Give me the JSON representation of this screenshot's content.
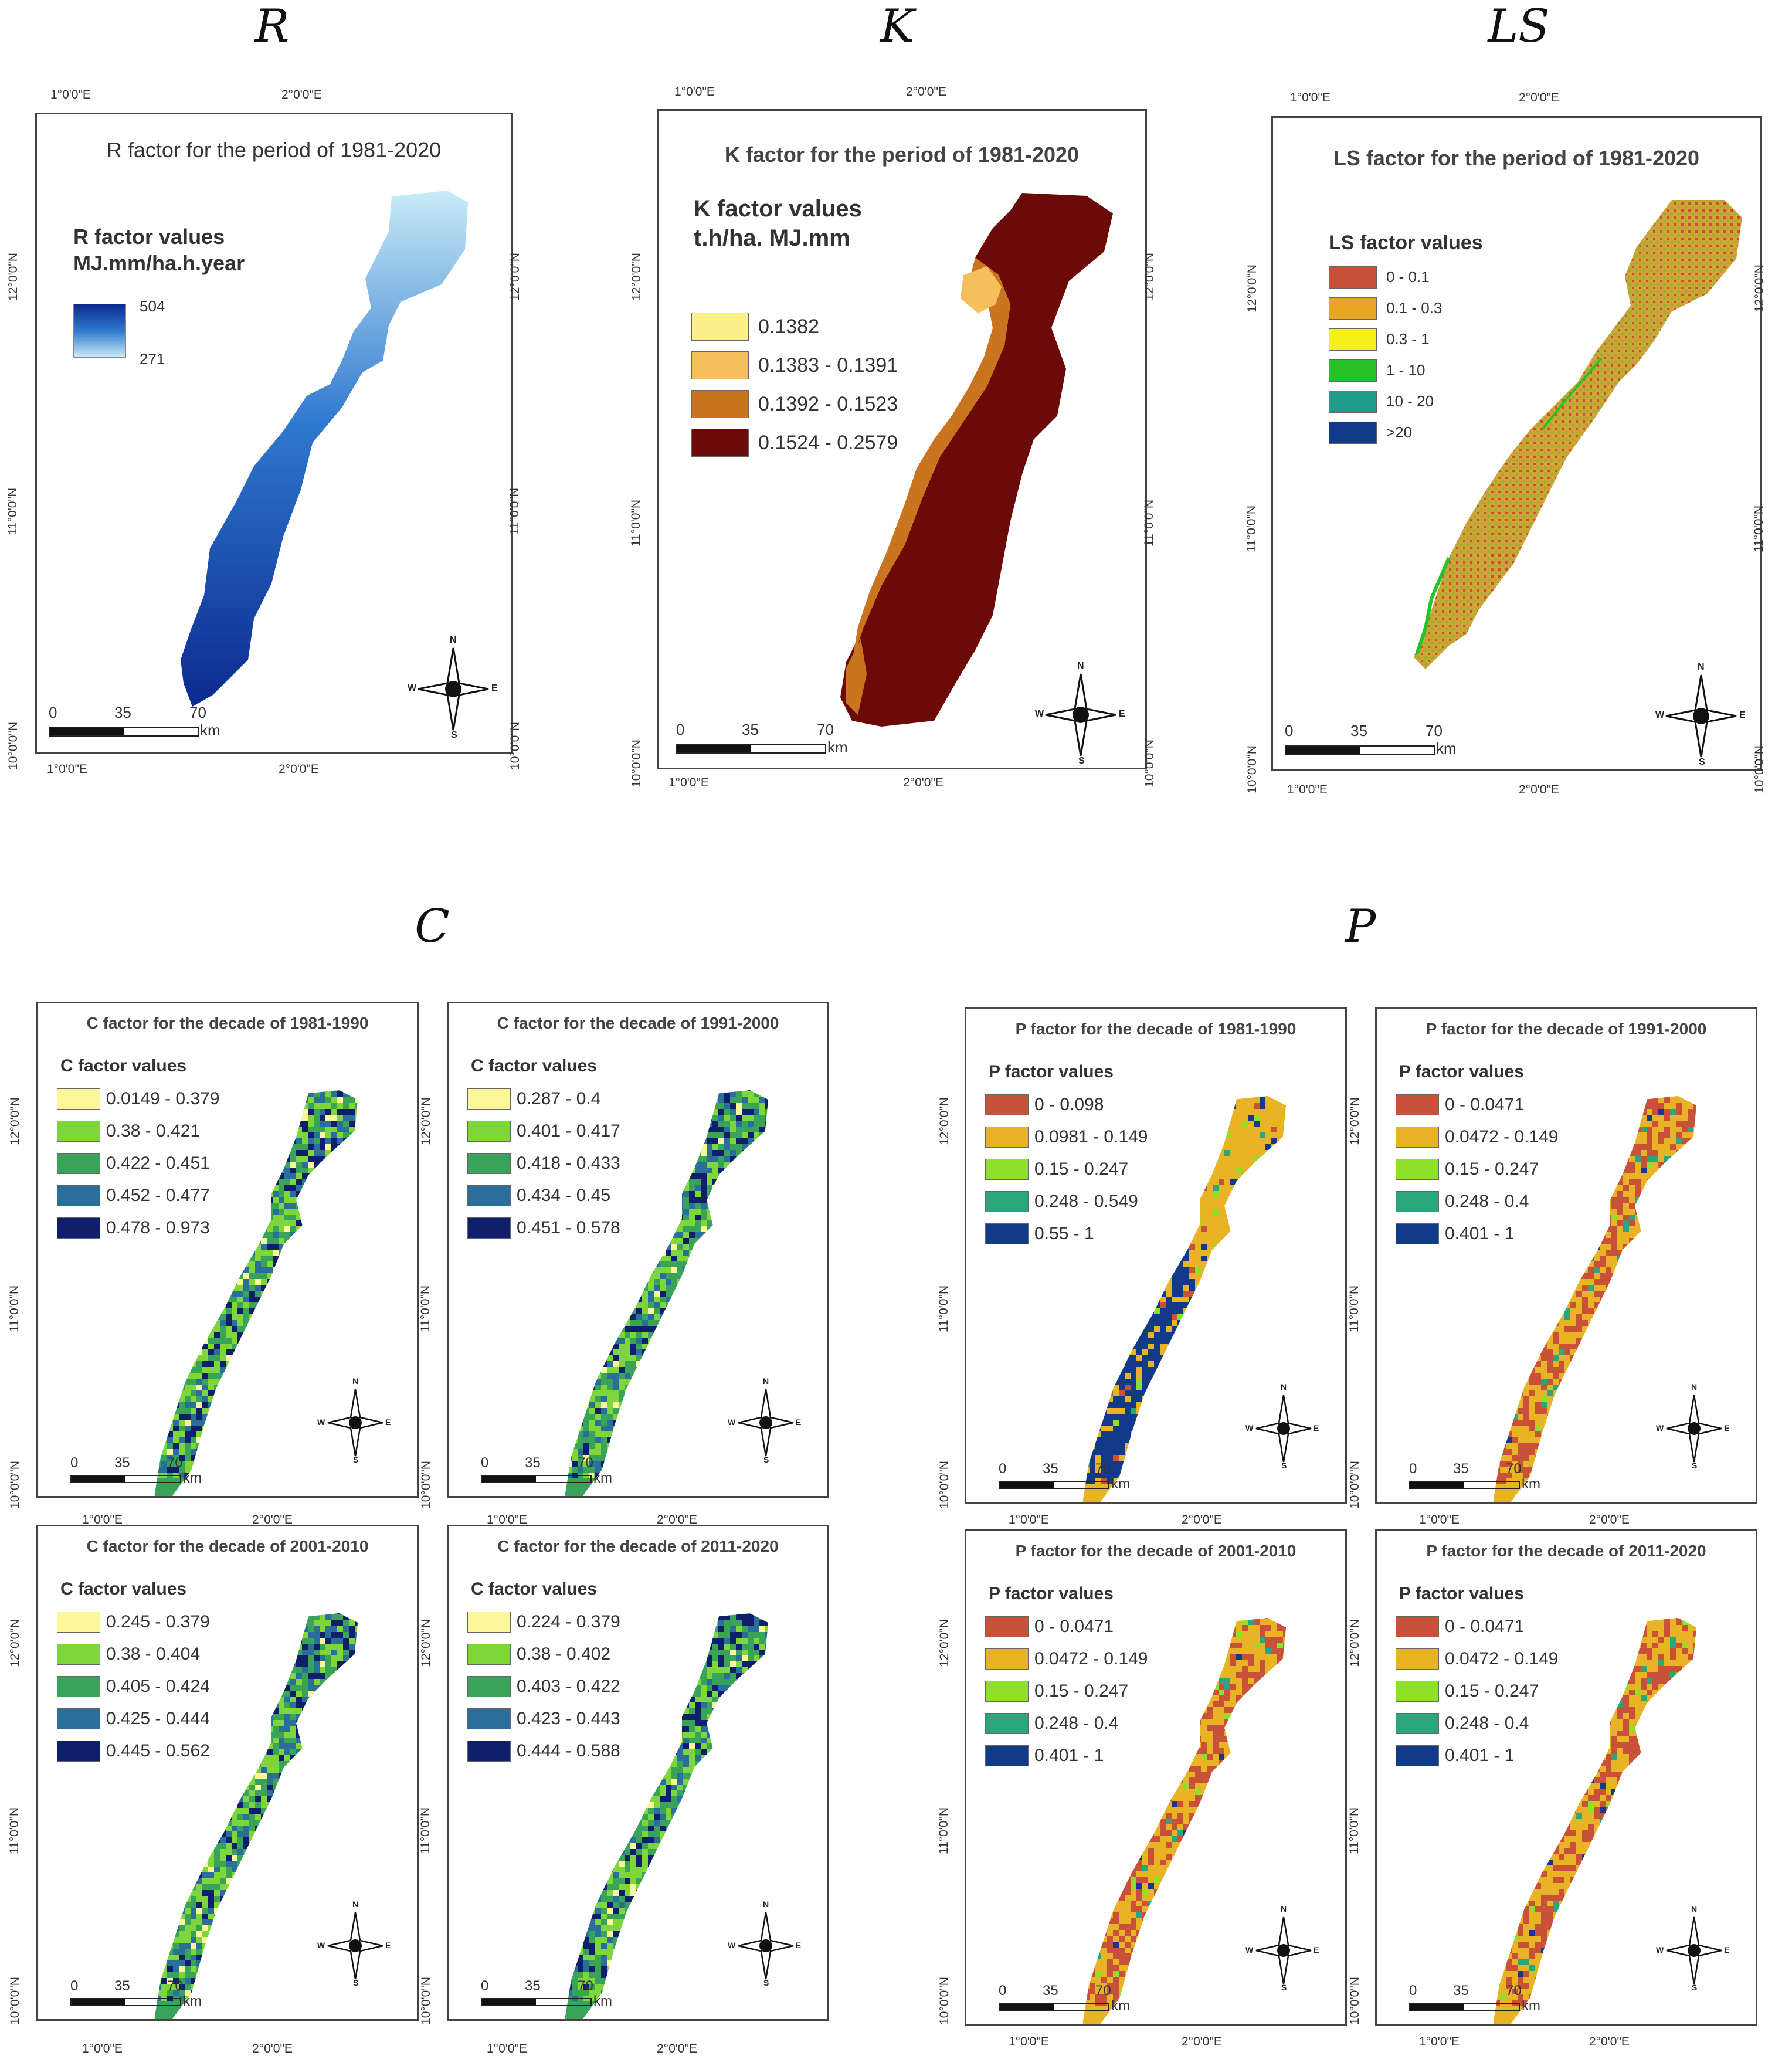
{
  "sections": {
    "R": "R",
    "K": "K",
    "LS": "LS",
    "C": "C",
    "P": "P"
  },
  "coords": {
    "lon1": "1°0'0\"E",
    "lon2": "2°0'0\"E",
    "lat12": "12°0'0\"N",
    "lat11": "11°0'0\"N",
    "lat10": "10°0'0\"N"
  },
  "scalebar": {
    "n0": "0",
    "n1": "35",
    "n2": "70",
    "unit": "km"
  },
  "compass": {
    "n": "N",
    "s": "S",
    "e": "E",
    "w": "W"
  },
  "r_map": {
    "title": "R factor for the period of 1981-2020",
    "legend_title_1": "R factor values",
    "legend_title_2": "MJ.mm/ha.h.year",
    "max": "504",
    "min": "271",
    "colors": {
      "high": "#0b2a8f",
      "mid": "#2f78cf",
      "low": "#c9ecf6"
    }
  },
  "k_map": {
    "title": "K factor for the period of 1981-2020",
    "legend_title_1": "K factor values",
    "legend_title_2": "t.h/ha. MJ.mm",
    "classes": [
      {
        "label": "0.1382",
        "color": "#fbef8a"
      },
      {
        "label": "0.1383 - 0.1391",
        "color": "#f5bf5c"
      },
      {
        "label": "0.1392 - 0.1523",
        "color": "#c9741f"
      },
      {
        "label": "0.1524 - 0.2579",
        "color": "#6b0a06"
      }
    ]
  },
  "ls_map": {
    "title": "LS factor for the period of 1981-2020",
    "legend_title": "LS factor values",
    "classes": [
      {
        "label": "0 - 0.1",
        "color": "#c9513a"
      },
      {
        "label": "0.1 - 0.3",
        "color": "#e8a526"
      },
      {
        "label": "0.3 - 1",
        "color": "#f4f21a"
      },
      {
        "label": "1 - 10",
        "color": "#27c227"
      },
      {
        "label": "10 - 20",
        "color": "#1f9c8a"
      },
      {
        "label": ">20",
        "color": "#123a8a"
      }
    ]
  },
  "c_maps": [
    {
      "title": "C  factor for the decade of 1981-1990",
      "legend_title": "C factor values",
      "classes": [
        {
          "label": "0.0149 - 0.379",
          "color": "#fbf79a"
        },
        {
          "label": "0.38 - 0.421",
          "color": "#7fd63a"
        },
        {
          "label": "0.422 - 0.451",
          "color": "#3aa35a"
        },
        {
          "label": "0.452 - 0.477",
          "color": "#2a6f9c"
        },
        {
          "label": "0.478 - 0.973",
          "color": "#0f1f6b"
        }
      ]
    },
    {
      "title": "C factor for the decade of 1991-2000",
      "legend_title": "C factor values",
      "classes": [
        {
          "label": "0.287 - 0.4",
          "color": "#fbf79a"
        },
        {
          "label": "0.401 - 0.417",
          "color": "#7fd63a"
        },
        {
          "label": "0.418 - 0.433",
          "color": "#3aa35a"
        },
        {
          "label": "0.434 - 0.45",
          "color": "#2a6f9c"
        },
        {
          "label": "0.451 - 0.578",
          "color": "#0f1f6b"
        }
      ]
    },
    {
      "title": "C factor for the decade of 2001-2010",
      "legend_title": "C factor values",
      "classes": [
        {
          "label": "0.245 - 0.379",
          "color": "#fbf79a"
        },
        {
          "label": "0.38 - 0.404",
          "color": "#7fd63a"
        },
        {
          "label": "0.405 - 0.424",
          "color": "#3aa35a"
        },
        {
          "label": "0.425 - 0.444",
          "color": "#2a6f9c"
        },
        {
          "label": "0.445 - 0.562",
          "color": "#0f1f6b"
        }
      ]
    },
    {
      "title": "C factor for the decade of 2011-2020",
      "legend_title": "C factor values",
      "classes": [
        {
          "label": "0.224 - 0.379",
          "color": "#fbf79a"
        },
        {
          "label": "0.38 - 0.402",
          "color": "#7fd63a"
        },
        {
          "label": "0.403 - 0.422",
          "color": "#3aa35a"
        },
        {
          "label": "0.423 - 0.443",
          "color": "#2a6f9c"
        },
        {
          "label": "0.444 - 0.588",
          "color": "#0f1f6b"
        }
      ]
    }
  ],
  "p_maps": [
    {
      "title": "P factor for the decade of 1981-1990",
      "legend_title": "P factor values",
      "classes": [
        {
          "label": "0 - 0.098",
          "color": "#c9513a"
        },
        {
          "label": "0.0981 - 0.149",
          "color": "#e8b426"
        },
        {
          "label": "0.15 - 0.247",
          "color": "#8fe02a"
        },
        {
          "label": "0.248 - 0.549",
          "color": "#2aa67a"
        },
        {
          "label": "0.55 - 1",
          "color": "#123a8a"
        }
      ]
    },
    {
      "title": "P factor for the decade of 1991-2000",
      "legend_title": "P factor values",
      "classes": [
        {
          "label": "0 - 0.0471",
          "color": "#c9513a"
        },
        {
          "label": "0.0472 - 0.149",
          "color": "#e8b426"
        },
        {
          "label": "0.15 - 0.247",
          "color": "#8fe02a"
        },
        {
          "label": "0.248 - 0.4",
          "color": "#2aa67a"
        },
        {
          "label": "0.401 - 1",
          "color": "#123a8a"
        }
      ]
    },
    {
      "title": "P factor for the decade of 2001-2010",
      "legend_title": "P factor values",
      "classes": [
        {
          "label": "0 - 0.0471",
          "color": "#c9513a"
        },
        {
          "label": "0.0472 - 0.149",
          "color": "#e8b426"
        },
        {
          "label": "0.15 - 0.247",
          "color": "#8fe02a"
        },
        {
          "label": "0.248 - 0.4",
          "color": "#2aa67a"
        },
        {
          "label": "0.401 - 1",
          "color": "#123a8a"
        }
      ]
    },
    {
      "title": "P factor for the decade of 2011-2020",
      "legend_title": "P factor values",
      "classes": [
        {
          "label": "0 - 0.0471",
          "color": "#c9513a"
        },
        {
          "label": "0.0472 - 0.149",
          "color": "#e8b426"
        },
        {
          "label": "0.15 - 0.247",
          "color": "#8fe02a"
        },
        {
          "label": "0.248 - 0.4",
          "color": "#2aa67a"
        },
        {
          "label": "0.401 - 1",
          "color": "#123a8a"
        }
      ]
    }
  ]
}
